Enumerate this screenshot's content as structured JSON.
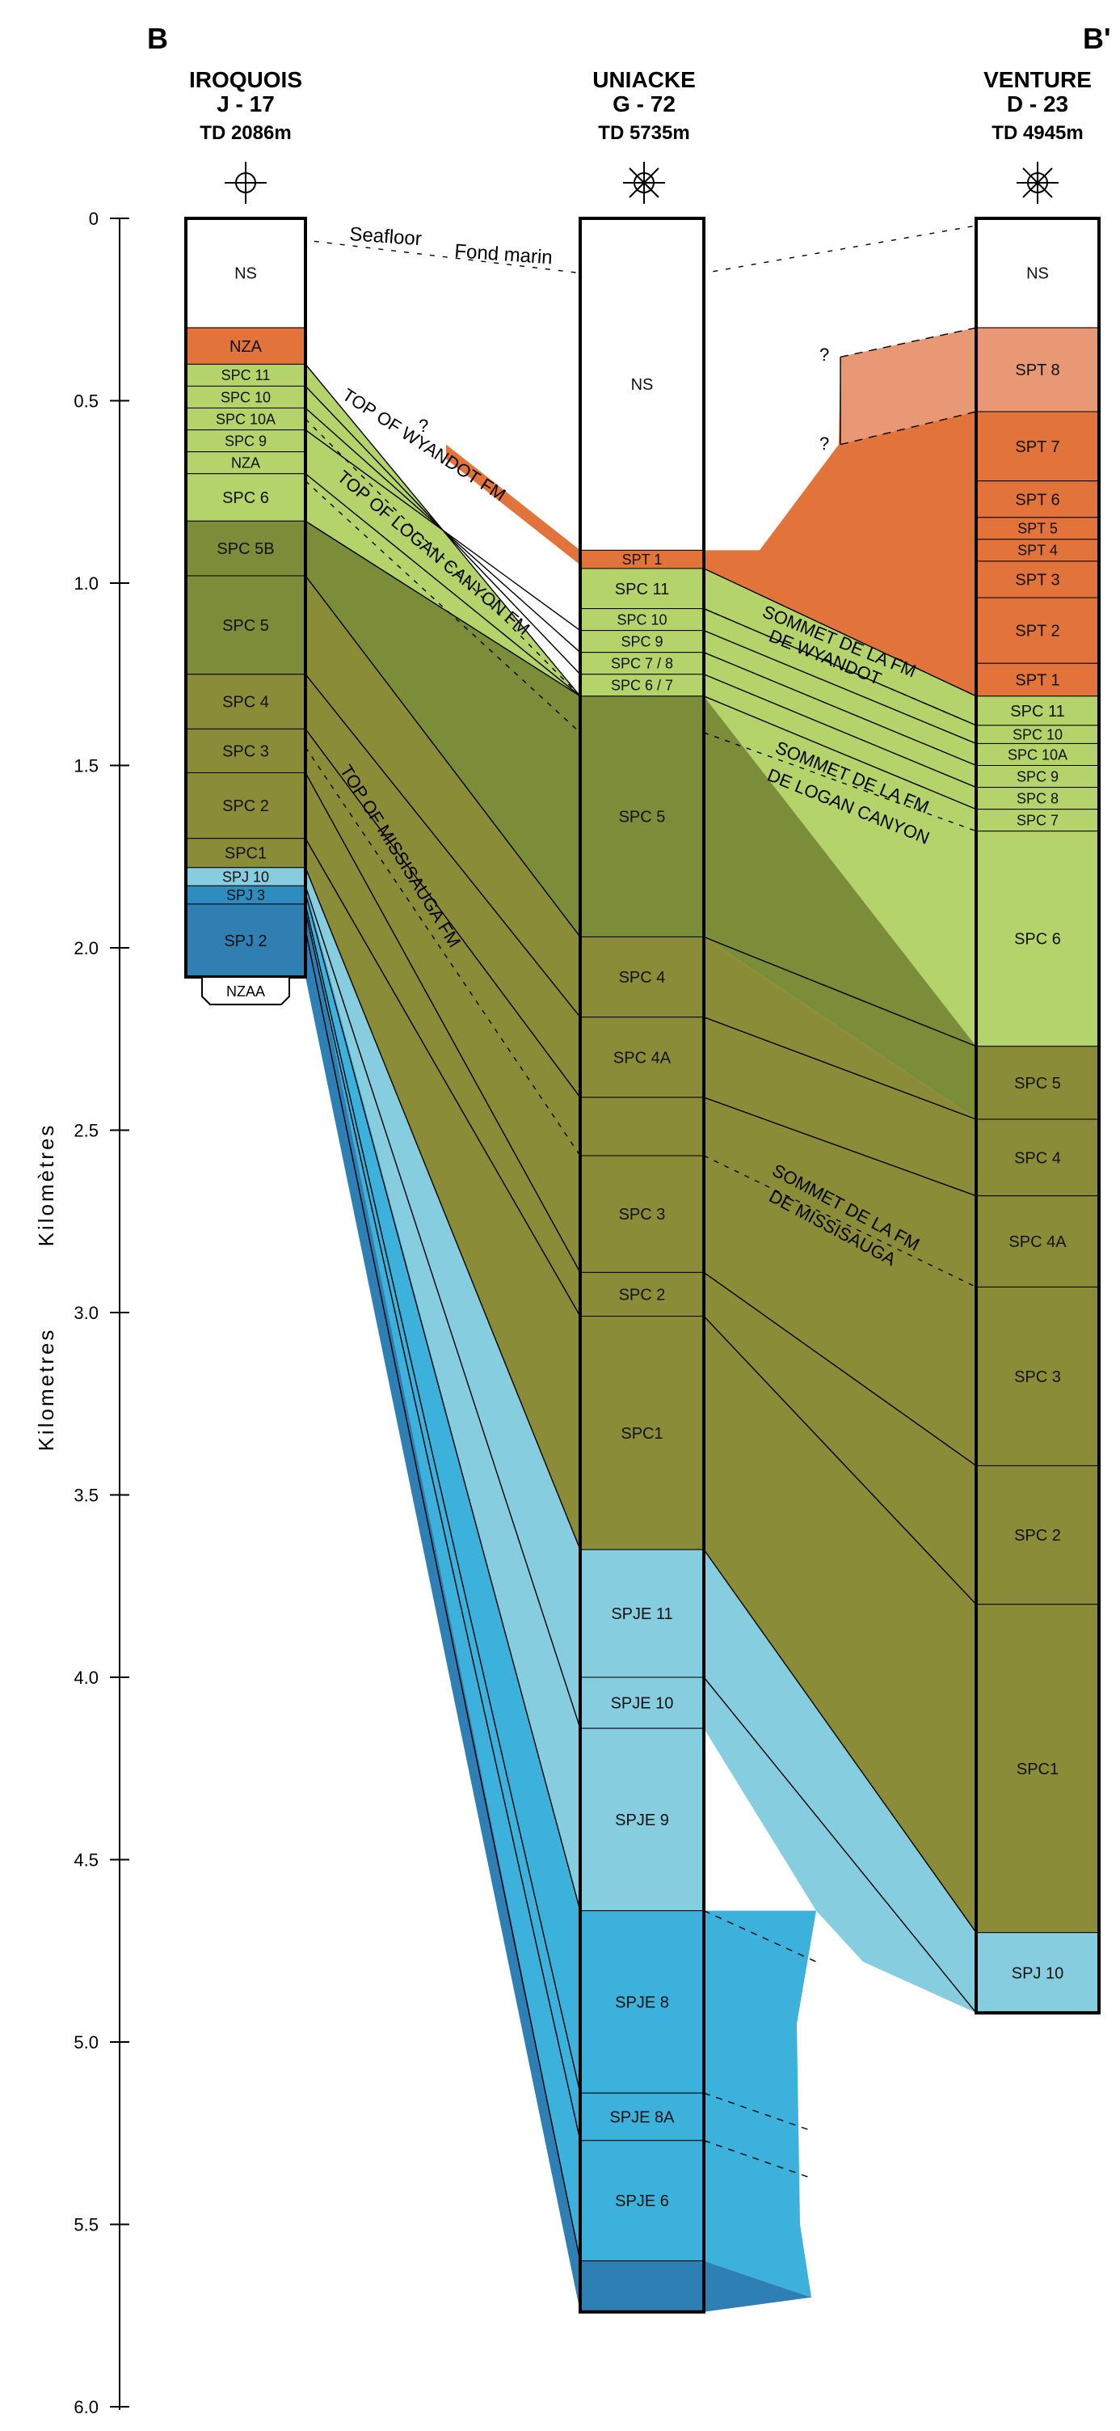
{
  "section": {
    "left_label": "B",
    "right_label": "B'"
  },
  "axis": {
    "title_en": "Kilometres",
    "title_fr": "Kilomètres",
    "ticks": [
      "0",
      "0.5",
      "1.0",
      "1.5",
      "2.0",
      "2.5",
      "3.0",
      "3.5",
      "4.0",
      "4.5",
      "5.0",
      "5.5",
      "6.0"
    ],
    "min": 0,
    "max": 6.0
  },
  "wells": [
    {
      "name": "IROQUOIS",
      "id": "J - 17",
      "td": "TD 2086m",
      "symbol": "dry-hole",
      "base_label": "NZAA",
      "units": [
        {
          "label": "NS",
          "top": 0,
          "base": 0.3,
          "color": "#ffffff"
        },
        {
          "label": "NZA",
          "top": 0.3,
          "base": 0.4,
          "color": "#e2733b"
        },
        {
          "label": "SPC 11",
          "top": 0.4,
          "base": 0.46,
          "color": "#b5d36b"
        },
        {
          "label": "SPC 10",
          "top": 0.46,
          "base": 0.52,
          "color": "#b5d36b"
        },
        {
          "label": "SPC 10A",
          "top": 0.52,
          "base": 0.58,
          "color": "#b5d36b"
        },
        {
          "label": "SPC 9",
          "top": 0.58,
          "base": 0.64,
          "color": "#b5d36b"
        },
        {
          "label": "NZA",
          "top": 0.64,
          "base": 0.7,
          "color": "#b5d36b"
        },
        {
          "label": "SPC 6",
          "top": 0.7,
          "base": 0.83,
          "color": "#b5d36b"
        },
        {
          "label": "SPC 5B",
          "top": 0.83,
          "base": 0.98,
          "color": "#7b8d39"
        },
        {
          "label": "SPC 5",
          "top": 0.98,
          "base": 1.25,
          "color": "#7b8d39"
        },
        {
          "label": "SPC 4",
          "top": 1.25,
          "base": 1.4,
          "color": "#8b8c37"
        },
        {
          "label": "SPC 3",
          "top": 1.4,
          "base": 1.52,
          "color": "#8b8c37"
        },
        {
          "label": "SPC 2",
          "top": 1.52,
          "base": 1.7,
          "color": "#8b8c37"
        },
        {
          "label": "SPC1",
          "top": 1.7,
          "base": 1.78,
          "color": "#8b8c37"
        },
        {
          "label": "SPJ 10",
          "top": 1.78,
          "base": 1.83,
          "color": "#86cde0"
        },
        {
          "label": "SPJ 3",
          "top": 1.83,
          "base": 1.88,
          "color": "#2f8cbf"
        },
        {
          "label": "SPJ 2",
          "top": 1.88,
          "base": 2.08,
          "color": "#2f7fb2"
        }
      ]
    },
    {
      "name": "UNIACKE",
      "id": "G - 72",
      "td": "TD 5735m",
      "symbol": "gas-show",
      "units": [
        {
          "label": "NS",
          "top": 0,
          "base": 0.91,
          "color": "#ffffff"
        },
        {
          "label": "SPT 1",
          "top": 0.91,
          "base": 0.96,
          "color": "#e2733b"
        },
        {
          "label": "SPC 11",
          "top": 0.96,
          "base": 1.07,
          "color": "#b5d36b"
        },
        {
          "label": "SPC 10",
          "top": 1.07,
          "base": 1.13,
          "color": "#b5d36b"
        },
        {
          "label": "SPC 9",
          "top": 1.13,
          "base": 1.19,
          "color": "#b5d36b"
        },
        {
          "label": "SPC 7 / 8",
          "top": 1.19,
          "base": 1.25,
          "color": "#b5d36b"
        },
        {
          "label": "SPC 6 / 7",
          "top": 1.25,
          "base": 1.31,
          "color": "#b5d36b"
        },
        {
          "label": "SPC 5",
          "top": 1.31,
          "base": 1.97,
          "color": "#7b8d39"
        },
        {
          "label": "SPC 4",
          "top": 1.97,
          "base": 2.19,
          "color": "#8b8c37"
        },
        {
          "label": "SPC 4A",
          "top": 2.19,
          "base": 2.41,
          "color": "#8b8c37"
        },
        {
          "label": "",
          "top": 2.41,
          "base": 2.57,
          "color": "#8b8c37"
        },
        {
          "label": "SPC 3",
          "top": 2.57,
          "base": 2.89,
          "color": "#8b8c37"
        },
        {
          "label": "SPC 2",
          "top": 2.89,
          "base": 3.01,
          "color": "#8b8c37"
        },
        {
          "label": "SPC1",
          "top": 3.01,
          "base": 3.65,
          "color": "#8b8c37"
        },
        {
          "label": "SPJE 11",
          "top": 3.65,
          "base": 4.0,
          "color": "#86cde0"
        },
        {
          "label": "SPJE 10",
          "top": 4.0,
          "base": 4.14,
          "color": "#86cde0"
        },
        {
          "label": "SPJE 9",
          "top": 4.14,
          "base": 4.64,
          "color": "#86cde0"
        },
        {
          "label": "SPJE 8",
          "top": 4.64,
          "base": 5.14,
          "color": "#3cb1dc"
        },
        {
          "label": "SPJE 8A",
          "top": 5.14,
          "base": 5.27,
          "color": "#3cb1dc"
        },
        {
          "label": "SPJE 6",
          "top": 5.27,
          "base": 5.6,
          "color": "#3cb1dc"
        },
        {
          "label": "",
          "top": 5.6,
          "base": 5.74,
          "color": "#2e7fb3"
        }
      ]
    },
    {
      "name": "VENTURE",
      "id": "D - 23",
      "td": "TD 4945m",
      "symbol": "gas-well",
      "units": [
        {
          "label": "NS",
          "top": 0,
          "base": 0.3,
          "color": "#ffffff"
        },
        {
          "label": "SPT 8",
          "top": 0.3,
          "base": 0.53,
          "color": "#e99876"
        },
        {
          "label": "SPT 7",
          "top": 0.53,
          "base": 0.72,
          "color": "#e2733b"
        },
        {
          "label": "SPT 6",
          "top": 0.72,
          "base": 0.82,
          "color": "#e2733b"
        },
        {
          "label": "SPT 5",
          "top": 0.82,
          "base": 0.88,
          "color": "#e2733b"
        },
        {
          "label": "SPT 4",
          "top": 0.88,
          "base": 0.94,
          "color": "#e2733b"
        },
        {
          "label": "SPT 3",
          "top": 0.94,
          "base": 1.04,
          "color": "#e2733b"
        },
        {
          "label": "SPT 2",
          "top": 1.04,
          "base": 1.22,
          "color": "#e2733b"
        },
        {
          "label": "SPT 1",
          "top": 1.22,
          "base": 1.31,
          "color": "#e2733b"
        },
        {
          "label": "SPC 11",
          "top": 1.31,
          "base": 1.39,
          "color": "#b5d36b"
        },
        {
          "label": "SPC 10",
          "top": 1.39,
          "base": 1.44,
          "color": "#b5d36b"
        },
        {
          "label": "SPC 10A",
          "top": 1.44,
          "base": 1.5,
          "color": "#b5d36b"
        },
        {
          "label": "SPC 9",
          "top": 1.5,
          "base": 1.56,
          "color": "#b5d36b"
        },
        {
          "label": "SPC 8",
          "top": 1.56,
          "base": 1.62,
          "color": "#b5d36b"
        },
        {
          "label": "SPC 7",
          "top": 1.62,
          "base": 1.68,
          "color": "#b5d36b"
        },
        {
          "label": "SPC 6",
          "top": 1.68,
          "base": 2.27,
          "color": "#b5d36b"
        },
        {
          "label": "SPC 5",
          "top": 2.27,
          "base": 2.47,
          "color": "#8b8c37"
        },
        {
          "label": "SPC 4",
          "top": 2.47,
          "base": 2.68,
          "color": "#8b8c37"
        },
        {
          "label": "SPC 4A",
          "top": 2.68,
          "base": 2.93,
          "color": "#8b8c37"
        },
        {
          "label": "SPC 3",
          "top": 2.93,
          "base": 3.42,
          "color": "#8b8c37"
        },
        {
          "label": "SPC 2",
          "top": 3.42,
          "base": 3.8,
          "color": "#8b8c37"
        },
        {
          "label": "SPC1",
          "top": 3.8,
          "base": 4.7,
          "color": "#8b8c37"
        },
        {
          "label": "SPJ 10",
          "top": 4.7,
          "base": 4.92,
          "color": "#86cde0"
        }
      ]
    }
  ],
  "annotations": {
    "seafloor_en": "Seafloor",
    "seafloor_fr": "Fond marin",
    "wyandot_en": "TOP OF WYANDOT FM",
    "logan_en": "TOP OF LOGAN CANYON FM",
    "missisauga_en": "TOP OF MISSISAUGA FM",
    "wyandot_fr_1": "SOMMET DE LA FM",
    "wyandot_fr_2": "DE WYANDOT",
    "logan_fr_1": "SOMMET DE LA FM",
    "logan_fr_2": "DE LOGAN CANYON",
    "missisauga_fr_1": "SOMMET DE LA FM",
    "missisauga_fr_2": "DE MISSISAUGA",
    "uncertain": "?"
  },
  "colors": {
    "tertiary": "#e2733b",
    "tertiary_light": "#e99876",
    "upper_cretaceous": "#b5d36b",
    "mid_cretaceous": "#7b8d39",
    "lower_cretaceous": "#8b8c37",
    "jurassic_light": "#86cde0",
    "jurassic_mid": "#3cb1dc",
    "jurassic_dark": "#2e7fb3"
  }
}
